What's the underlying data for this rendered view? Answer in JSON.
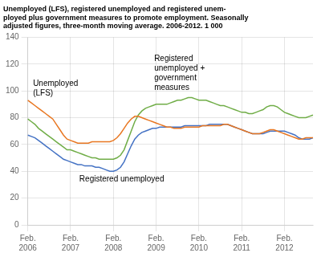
{
  "chart_data": {
    "type": "line",
    "title": "Unemployed (LFS), registered unemployed and registered unem-\nployed plus government measures to promote employment. Seasonally\nadjusted figures, three-month moving average. 2006-2012. 1 000",
    "categories": [
      "Feb.\n2006",
      null,
      null,
      null,
      null,
      null,
      null,
      null,
      null,
      null,
      null,
      null,
      "Feb.\n2007",
      null,
      null,
      null,
      null,
      null,
      null,
      null,
      null,
      null,
      null,
      null,
      "Feb.\n2008",
      null,
      null,
      null,
      null,
      null,
      null,
      null,
      null,
      null,
      null,
      null,
      "Feb.\n2009",
      null,
      null,
      null,
      null,
      null,
      null,
      null,
      null,
      null,
      null,
      null,
      "Feb.\n2010",
      null,
      null,
      null,
      null,
      null,
      null,
      null,
      null,
      null,
      null,
      null,
      "Feb.\n2011",
      null,
      null,
      null,
      null,
      null,
      null,
      null,
      null,
      null,
      null,
      null,
      "Feb.\n2012",
      null,
      null,
      null,
      null,
      null,
      null,
      null,
      null
    ],
    "series": [
      {
        "color": "#E87722",
        "values": [
          93,
          91,
          89,
          87,
          85,
          83,
          81,
          79,
          75,
          71,
          67,
          64,
          63,
          62,
          61,
          61,
          61,
          61,
          62,
          62,
          62,
          62,
          62,
          62,
          63,
          65,
          68,
          72,
          76,
          79,
          81,
          81,
          80,
          79,
          78,
          77,
          76,
          75,
          74,
          73,
          73,
          72,
          72,
          72,
          73,
          73,
          73,
          73,
          73,
          74,
          74,
          74,
          74,
          74,
          74,
          75,
          75,
          74,
          73,
          72,
          71,
          70,
          69,
          68,
          68,
          68,
          69,
          70,
          71,
          71,
          70,
          69,
          68,
          67,
          66,
          65,
          64,
          64,
          65,
          65,
          65
        ]
      },
      {
        "color": "#4472C4",
        "values": [
          67,
          66,
          65,
          63,
          61,
          59,
          57,
          55,
          53,
          51,
          49,
          48,
          47,
          46,
          45,
          45,
          44,
          44,
          44,
          43,
          43,
          42,
          41,
          40,
          40,
          41,
          43,
          47,
          53,
          59,
          64,
          67,
          69,
          70,
          71,
          72,
          72,
          73,
          73,
          73,
          73,
          73,
          73,
          73,
          74,
          74,
          74,
          74,
          74,
          74,
          74,
          75,
          75,
          75,
          75,
          75,
          75,
          74,
          73,
          72,
          71,
          70,
          69,
          68,
          68,
          68,
          68,
          69,
          70,
          70,
          70,
          70,
          70,
          69,
          68,
          67,
          65,
          64,
          64,
          64,
          65
        ]
      },
      {
        "color": "#70AD47",
        "values": [
          79,
          77,
          75,
          72,
          70,
          68,
          66,
          64,
          62,
          60,
          58,
          56,
          56,
          55,
          54,
          53,
          52,
          51,
          50,
          50,
          49,
          49,
          49,
          49,
          49,
          50,
          52,
          56,
          63,
          70,
          77,
          82,
          85,
          87,
          88,
          89,
          90,
          90,
          90,
          90,
          91,
          92,
          93,
          93,
          94,
          95,
          95,
          94,
          93,
          93,
          93,
          92,
          91,
          90,
          89,
          89,
          88,
          87,
          86,
          85,
          84,
          84,
          83,
          83,
          84,
          85,
          86,
          88,
          89,
          89,
          88,
          86,
          84,
          83,
          82,
          81,
          80,
          80,
          80,
          81,
          82
        ]
      }
    ],
    "annotations": [
      "Unemployed\n(LFS)",
      "Registered unemployed",
      "Registered\nunemployed +\ngovernment\nmeasures"
    ],
    "ylim": [
      0,
      140
    ],
    "yticks": [
      0,
      20,
      40,
      60,
      80,
      100,
      120,
      140
    ],
    "grid": true
  }
}
